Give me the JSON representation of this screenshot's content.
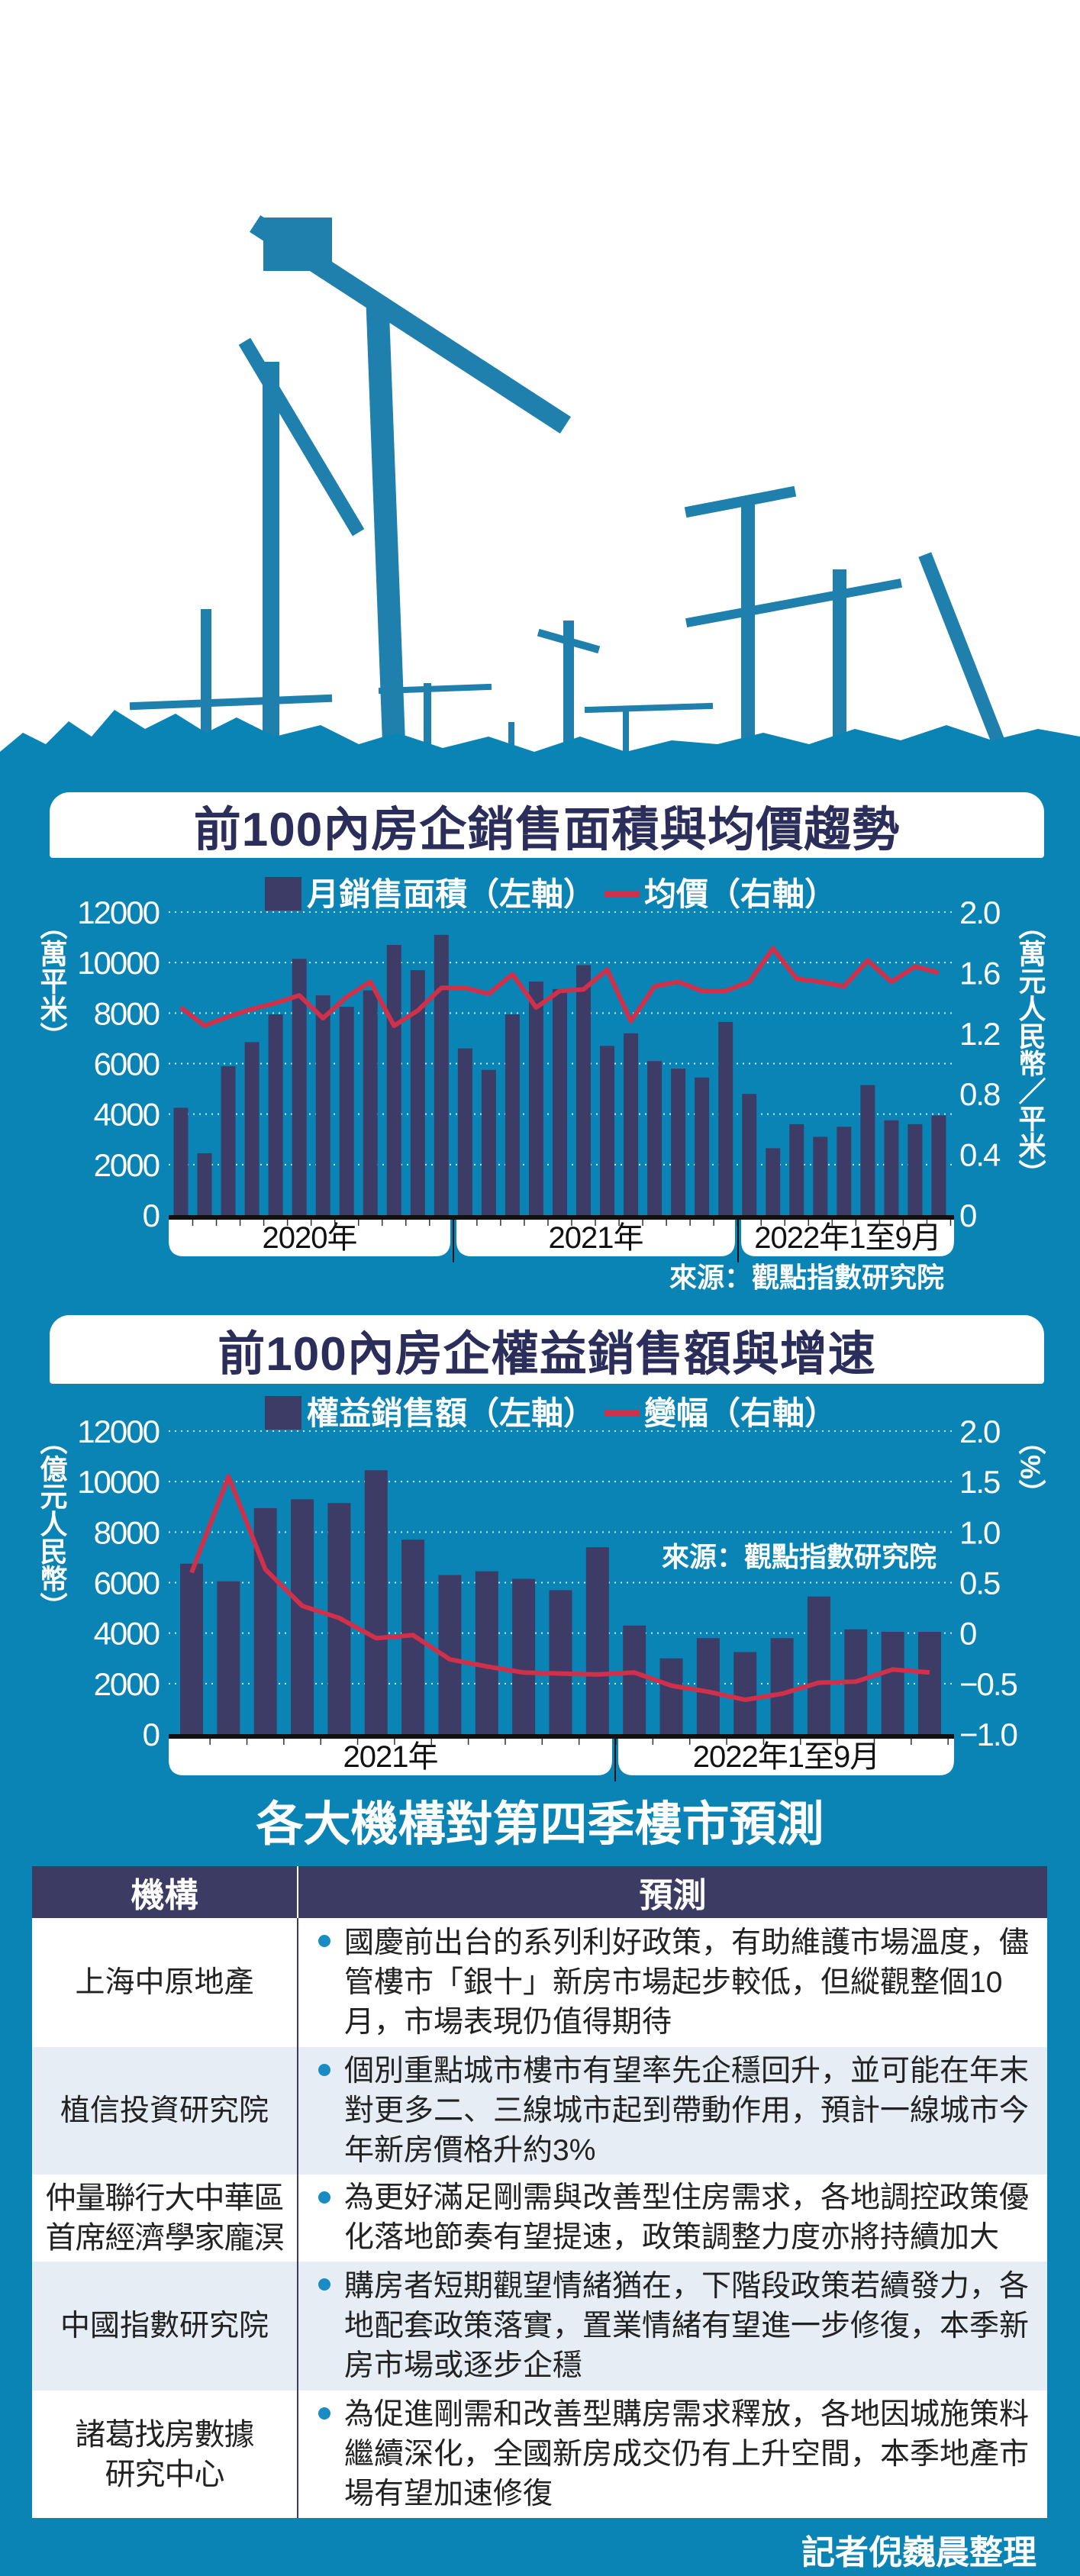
{
  "hero": {
    "illustration": "construction-cranes"
  },
  "section1": {
    "title": "前100內房企銷售面積與均價趨勢"
  },
  "section2": {
    "title": "前100內房企權益銷售額與增速"
  },
  "chart_data": [
    {
      "type": "bar+line",
      "title": "前100內房企銷售面積與均價趨勢",
      "categories": [
        "2020-01",
        "2020-02",
        "2020-03",
        "2020-04",
        "2020-05",
        "2020-06",
        "2020-07",
        "2020-08",
        "2020-09",
        "2020-10",
        "2020-11",
        "2020-12",
        "2021-01",
        "2021-02",
        "2021-03",
        "2021-04",
        "2021-05",
        "2021-06",
        "2021-07",
        "2021-08",
        "2021-09",
        "2021-10",
        "2021-11",
        "2021-12",
        "2022-01",
        "2022-02",
        "2022-03",
        "2022-04",
        "2022-05",
        "2022-06",
        "2022-07",
        "2022-08",
        "2022-09"
      ],
      "year_groups": [
        {
          "label": "2020年",
          "count": 12
        },
        {
          "label": "2021年",
          "count": 12
        },
        {
          "label": "2022年1至9月",
          "count": 9
        }
      ],
      "series": [
        {
          "name": "月銷售面積（左軸）",
          "type": "bar",
          "axis": "left",
          "color": "#3c3c66",
          "values": [
            4250,
            2450,
            5900,
            6850,
            7950,
            10150,
            8700,
            8250,
            8900,
            10700,
            9700,
            11100,
            6600,
            5750,
            7950,
            9250,
            8950,
            9900,
            6700,
            7200,
            6100,
            5800,
            5450,
            7650,
            4800,
            2650,
            3600,
            3100,
            3500,
            5150,
            3750,
            3600,
            3950
          ]
        },
        {
          "name": "均價（右軸）",
          "type": "line",
          "axis": "right",
          "color": "#d0304a",
          "values": [
            1.37,
            1.25,
            1.31,
            1.36,
            1.4,
            1.45,
            1.3,
            1.44,
            1.54,
            1.25,
            1.35,
            1.5,
            1.5,
            1.46,
            1.59,
            1.37,
            1.48,
            1.49,
            1.62,
            1.28,
            1.51,
            1.54,
            1.48,
            1.48,
            1.54,
            1.76,
            1.56,
            1.54,
            1.51,
            1.68,
            1.54,
            1.64,
            1.6
          ]
        }
      ],
      "ylabel": "（萬平米）",
      "ylim": [
        0,
        12000
      ],
      "yticks": [
        "0",
        "2000",
        "4000",
        "6000",
        "8000",
        "10000",
        "12000"
      ],
      "y2label": "（萬元人民幣／平米）",
      "y2lim": [
        0,
        2.0
      ],
      "y2ticks": [
        "0",
        "0.4",
        "0.8",
        "1.2",
        "1.6",
        "2.0"
      ],
      "source": "來源：觀點指數研究院",
      "legend": "top",
      "grid": true
    },
    {
      "type": "bar+line",
      "title": "前100內房企權益銷售額與增速",
      "categories": [
        "2021-01",
        "2021-02",
        "2021-03",
        "2021-04",
        "2021-05",
        "2021-06",
        "2021-07",
        "2021-08",
        "2021-09",
        "2021-10",
        "2021-11",
        "2021-12",
        "2022-01",
        "2022-02",
        "2022-03",
        "2022-04",
        "2022-05",
        "2022-06",
        "2022-07",
        "2022-08",
        "2022-09"
      ],
      "year_groups": [
        {
          "label": "2021年",
          "count": 12
        },
        {
          "label": "2022年1至9月",
          "count": 9
        }
      ],
      "series": [
        {
          "name": "權益銷售額（左軸）",
          "type": "bar",
          "axis": "left",
          "color": "#3c3c66",
          "values": [
            6750,
            6050,
            8950,
            9300,
            9150,
            10450,
            7700,
            6300,
            6450,
            6150,
            5700,
            7400,
            4300,
            3000,
            3800,
            3250,
            3800,
            5450,
            4150,
            4050,
            4050
          ]
        },
        {
          "name": "變幅（右軸）",
          "type": "line",
          "axis": "right",
          "color": "#d0304a",
          "values": [
            0.6,
            1.55,
            0.63,
            0.27,
            0.15,
            -0.05,
            -0.02,
            -0.26,
            -0.33,
            -0.39,
            -0.4,
            -0.41,
            -0.39,
            -0.52,
            -0.58,
            -0.66,
            -0.6,
            -0.49,
            -0.48,
            -0.36,
            -0.39
          ]
        }
      ],
      "ylabel": "（億元人民幣）",
      "ylim": [
        0,
        12000
      ],
      "yticks": [
        "0",
        "2000",
        "4000",
        "6000",
        "8000",
        "10000",
        "12000"
      ],
      "y2label": "（%）",
      "y2lim": [
        -1.0,
        2.0
      ],
      "y2ticks": [
        "−1.0",
        "−0.5",
        "0",
        "0.5",
        "1.0",
        "1.5",
        "2.0"
      ],
      "source": "來源：觀點指數研究院",
      "legend": "top",
      "grid": true
    }
  ],
  "table": {
    "title": "各大機構對第四季樓市預測",
    "headers": [
      "機構",
      "預測"
    ],
    "rows": [
      {
        "institution": [
          "上海中原地產"
        ],
        "prediction": "國慶前出台的系列利好政策，有助維護市場溫度，儘管樓市「銀十」新房市場起步較低，但縱觀整個10月，市場表現仍值得期待"
      },
      {
        "institution": [
          "植信投資研究院"
        ],
        "prediction": "個別重點城市樓市有望率先企穩回升，並可能在年末對更多二、三線城市起到帶動作用，預計一線城市今年新房價格升約3%"
      },
      {
        "institution": [
          "仲量聯行大中華區",
          "首席經濟學家龐溟"
        ],
        "prediction": "為更好滿足剛需與改善型住房需求，各地調控政策優化落地節奏有望提速，政策調整力度亦將持續加大"
      },
      {
        "institution": [
          "中國指數研究院"
        ],
        "prediction": "購房者短期觀望情緒猶在，下階段政策若續發力，各地配套政策落實，置業情緒有望進一步修復，本季新房市場或逐步企穩"
      },
      {
        "institution": [
          "諸葛找房數據",
          "研究中心"
        ],
        "prediction": "為促進剛需和改善型購房需求釋放，各地因城施策料繼續深化，全國新房成交仍有上升空間，本季地產市場有望加速修復"
      }
    ]
  },
  "footer": "記者倪巍晨整理"
}
